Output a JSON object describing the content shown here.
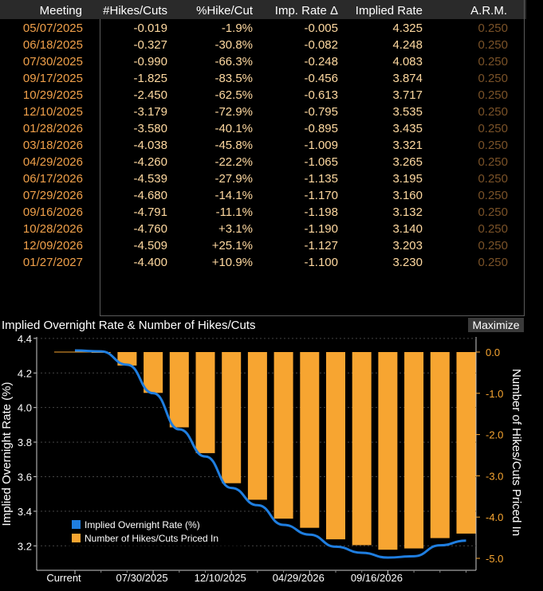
{
  "table": {
    "headers": [
      "Meeting",
      "#Hikes/Cuts",
      "%Hike/Cut",
      "Imp. Rate Δ",
      "Implied Rate",
      "A.R.M."
    ],
    "rows": [
      {
        "meeting": "05/07/2025",
        "hikes": "-0.019",
        "pct": "-1.9%",
        "delta": "-0.005",
        "rate": "4.325",
        "arm": "0.250"
      },
      {
        "meeting": "06/18/2025",
        "hikes": "-0.327",
        "pct": "-30.8%",
        "delta": "-0.082",
        "rate": "4.248",
        "arm": "0.250"
      },
      {
        "meeting": "07/30/2025",
        "hikes": "-0.990",
        "pct": "-66.3%",
        "delta": "-0.248",
        "rate": "4.083",
        "arm": "0.250"
      },
      {
        "meeting": "09/17/2025",
        "hikes": "-1.825",
        "pct": "-83.5%",
        "delta": "-0.456",
        "rate": "3.874",
        "arm": "0.250"
      },
      {
        "meeting": "10/29/2025",
        "hikes": "-2.450",
        "pct": "-62.5%",
        "delta": "-0.613",
        "rate": "3.717",
        "arm": "0.250"
      },
      {
        "meeting": "12/10/2025",
        "hikes": "-3.179",
        "pct": "-72.9%",
        "delta": "-0.795",
        "rate": "3.535",
        "arm": "0.250"
      },
      {
        "meeting": "01/28/2026",
        "hikes": "-3.580",
        "pct": "-40.1%",
        "delta": "-0.895",
        "rate": "3.435",
        "arm": "0.250"
      },
      {
        "meeting": "03/18/2026",
        "hikes": "-4.038",
        "pct": "-45.8%",
        "delta": "-1.009",
        "rate": "3.321",
        "arm": "0.250"
      },
      {
        "meeting": "04/29/2026",
        "hikes": "-4.260",
        "pct": "-22.2%",
        "delta": "-1.065",
        "rate": "3.265",
        "arm": "0.250"
      },
      {
        "meeting": "06/17/2026",
        "hikes": "-4.539",
        "pct": "-27.9%",
        "delta": "-1.135",
        "rate": "3.195",
        "arm": "0.250"
      },
      {
        "meeting": "07/29/2026",
        "hikes": "-4.680",
        "pct": "-14.1%",
        "delta": "-1.170",
        "rate": "3.160",
        "arm": "0.250"
      },
      {
        "meeting": "09/16/2026",
        "hikes": "-4.791",
        "pct": "-11.1%",
        "delta": "-1.198",
        "rate": "3.132",
        "arm": "0.250"
      },
      {
        "meeting": "10/28/2026",
        "hikes": "-4.760",
        "pct": "+3.1%",
        "delta": "-1.190",
        "rate": "3.140",
        "arm": "0.250"
      },
      {
        "meeting": "12/09/2026",
        "hikes": "-4.509",
        "pct": "+25.1%",
        "delta": "-1.127",
        "rate": "3.203",
        "arm": "0.250"
      },
      {
        "meeting": "01/27/2027",
        "hikes": "-4.400",
        "pct": "+10.9%",
        "delta": "-1.100",
        "rate": "3.230",
        "arm": "0.250"
      }
    ]
  },
  "chart_title": "Implied Overnight Rate & Number of Hikes/Cuts",
  "maximize_label": "Maximize",
  "colors": {
    "bar": "#f7a531",
    "line": "#1f7ee0",
    "date": "#f0a04a",
    "value": "#ffd9a0",
    "arm": "#7a5228"
  },
  "chart_data": {
    "type": "bar",
    "x": [
      "Current",
      "05/07/2025",
      "06/18/2025",
      "07/30/2025",
      "09/17/2025",
      "10/29/2025",
      "12/10/2025",
      "01/28/2026",
      "03/18/2026",
      "04/29/2026",
      "06/17/2026",
      "07/29/2026",
      "09/16/2026",
      "10/28/2026",
      "12/09/2026",
      "01/27/2027"
    ],
    "xtick_labels": [
      "Current",
      "07/30/2025",
      "12/10/2025",
      "04/29/2026",
      "09/16/2026"
    ],
    "series": [
      {
        "name": "Implied Overnight Rate (%)",
        "type": "line",
        "axis": "left",
        "values": [
          4.33,
          4.325,
          4.248,
          4.083,
          3.874,
          3.717,
          3.535,
          3.435,
          3.321,
          3.265,
          3.195,
          3.16,
          3.132,
          3.14,
          3.203,
          3.23
        ]
      },
      {
        "name": "Number of Hikes/Cuts Priced In",
        "type": "bar",
        "axis": "right",
        "values": [
          0,
          -0.019,
          -0.327,
          -0.99,
          -1.825,
          -2.45,
          -3.179,
          -3.58,
          -4.038,
          -4.26,
          -4.539,
          -4.68,
          -4.791,
          -4.76,
          -4.509,
          -4.4
        ]
      }
    ],
    "ylabel_left": "Implied Overnight Rate (%)",
    "ylabel_right": "Number of Hikes/Cuts Priced In",
    "ylim_left": [
      3.1,
      4.45
    ],
    "yticks_left": [
      "3.2",
      "3.4",
      "3.6",
      "3.8",
      "4.0",
      "4.2",
      "4.4"
    ],
    "ylim_right": [
      -5.0,
      0.0
    ],
    "yticks_right": [
      "0.0",
      "-1.0",
      "-2.0",
      "-3.0",
      "-4.0",
      "-5.0"
    ],
    "legend": "bottom-left",
    "grid": true
  }
}
